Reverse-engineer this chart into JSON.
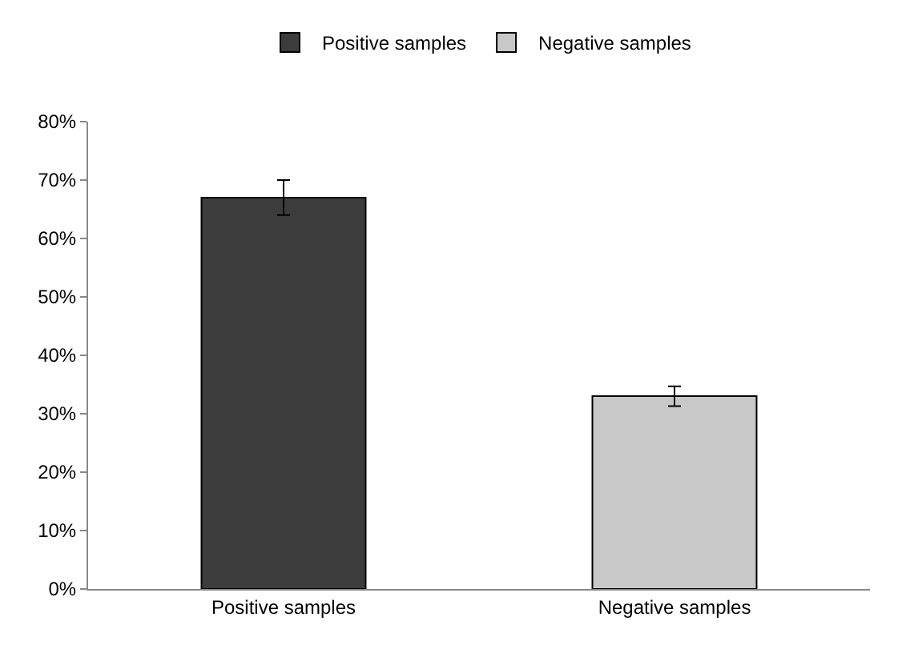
{
  "chart_data": {
    "type": "bar",
    "categories": [
      "Positive samples",
      "Negative samples"
    ],
    "series": [
      {
        "name": "Positive samples",
        "color": "#3c3c3c",
        "values": [
          67,
          null
        ],
        "errors": [
          3,
          null
        ]
      },
      {
        "name": "Negative samples",
        "color": "#c8c8c8",
        "values": [
          null,
          33
        ],
        "errors": [
          null,
          1.7
        ]
      }
    ],
    "ylim": [
      0,
      80
    ],
    "yticks": [
      {
        "value": 0,
        "label": "0%"
      },
      {
        "value": 10,
        "label": "10%"
      },
      {
        "value": 20,
        "label": "20%"
      },
      {
        "value": 30,
        "label": "30%"
      },
      {
        "value": 40,
        "label": "40%"
      },
      {
        "value": 50,
        "label": "50%"
      },
      {
        "value": 60,
        "label": "60%"
      },
      {
        "value": 70,
        "label": "70%"
      },
      {
        "value": 80,
        "label": "80%"
      }
    ],
    "legend": "top"
  }
}
